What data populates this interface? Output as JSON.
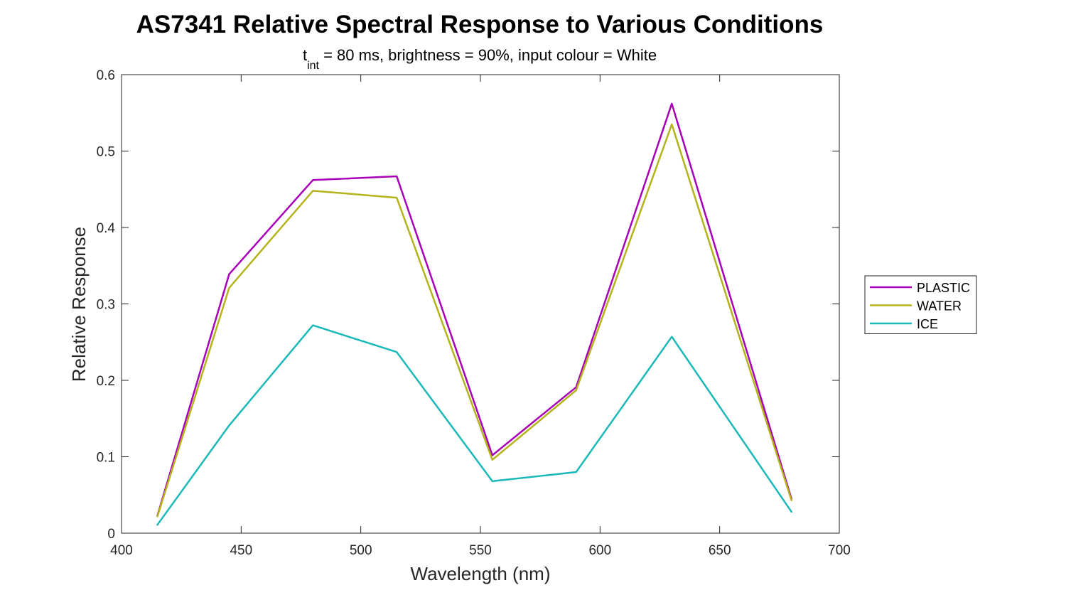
{
  "chart_data": {
    "type": "line",
    "title": "AS7341 Relative Spectral Response to Various Conditions",
    "subtitle_main": "t",
    "subtitle_sub": "int",
    "subtitle_rest": " = 80 ms, brightness = 90%, input colour = White",
    "xlabel": "Wavelength (nm)",
    "ylabel": "Relative Response",
    "xlim": [
      400,
      700
    ],
    "ylim": [
      0,
      0.6
    ],
    "xticks": [
      400,
      450,
      500,
      550,
      600,
      650,
      700
    ],
    "yticks": [
      0,
      0.1,
      0.2,
      0.3,
      0.4,
      0.5,
      0.6
    ],
    "xtick_labels": [
      "400",
      "450",
      "500",
      "550",
      "600",
      "650",
      "700"
    ],
    "ytick_labels": [
      "0",
      "0.1",
      "0.2",
      "0.3",
      "0.4",
      "0.5",
      "0.6"
    ],
    "grid": false,
    "legend_position": "right",
    "x": [
      415,
      445,
      480,
      515,
      555,
      590,
      630,
      680
    ],
    "series": [
      {
        "name": "PLASTIC",
        "color": "#a800b8",
        "values": [
          0.023,
          0.339,
          0.462,
          0.467,
          0.102,
          0.191,
          0.562,
          0.045
        ]
      },
      {
        "name": "WATER",
        "color": "#b5b31a",
        "values": [
          0.022,
          0.321,
          0.448,
          0.439,
          0.096,
          0.187,
          0.535,
          0.043
        ]
      },
      {
        "name": "ICE",
        "color": "#1ab8b8",
        "values": [
          0.011,
          0.141,
          0.272,
          0.237,
          0.068,
          0.08,
          0.257,
          0.028
        ]
      }
    ]
  }
}
